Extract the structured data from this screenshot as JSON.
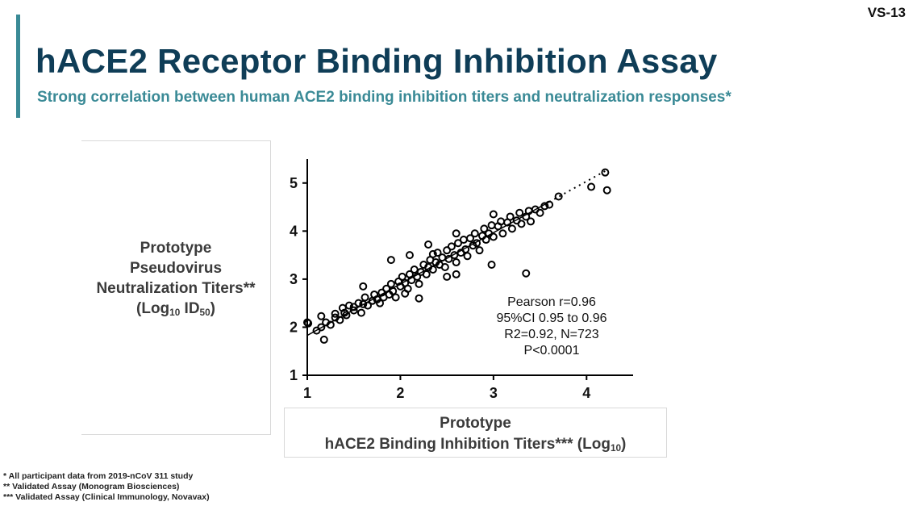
{
  "header": {
    "slide_id": "VS-13",
    "title": "hACE2 Receptor Binding Inhibition Assay",
    "subtitle": "Strong correlation between human ACE2 binding inhibition titers and neutralization responses*"
  },
  "y_axis_title": {
    "line1": "Prototype",
    "line2": "Pseudovirus",
    "line3": "Neutralization Titers**",
    "line4_prefix": "(Log",
    "line4_log_sub": "10",
    "line4_mid": " ID",
    "line4_id_sub": "50",
    "line4_suffix": ")"
  },
  "x_axis_title": {
    "line1": "Prototype",
    "line2_prefix": "hACE2 Binding Inhibition Titers*** (Log",
    "line2_sub": "10",
    "line2_suffix": ")"
  },
  "stats": {
    "pearson": "Pearson r=0.96",
    "ci": "95%CI 0.95  to 0.96",
    "r2": "R2=0.92, N=723",
    "p": "P<0.0001"
  },
  "footnotes": [
    "*  All participant data from 2019-nCoV 311 study",
    "**  Validated Assay (Monogram Biosciences)",
    "*** Validated Assay (Clinical Immunology, Novavax)"
  ],
  "colors": {
    "title": "#0f3d57",
    "accent": "#3a8a96",
    "marker": "#000000"
  },
  "chart_data": {
    "type": "scatter",
    "xlim": [
      1,
      4.5
    ],
    "ylim": [
      1,
      5.5
    ],
    "x_ticks": [
      1,
      2,
      3,
      4
    ],
    "y_ticks": [
      1,
      2,
      3,
      4,
      5
    ],
    "marker": "open-circle",
    "fit_line": {
      "x": [
        1.0,
        4.22
      ],
      "y": [
        1.83,
        5.27
      ],
      "style": "solid then dotted"
    },
    "points": [
      [
        1.0,
        2.1
      ],
      [
        1.01,
        2.08
      ],
      [
        1.1,
        1.93
      ],
      [
        1.15,
        2.0
      ],
      [
        1.18,
        1.74
      ],
      [
        1.15,
        2.23
      ],
      [
        1.2,
        2.1
      ],
      [
        1.25,
        2.05
      ],
      [
        1.3,
        2.2
      ],
      [
        1.3,
        2.28
      ],
      [
        1.35,
        2.15
      ],
      [
        1.38,
        2.4
      ],
      [
        1.4,
        2.3
      ],
      [
        1.42,
        2.25
      ],
      [
        1.45,
        2.45
      ],
      [
        1.5,
        2.35
      ],
      [
        1.5,
        2.42
      ],
      [
        1.55,
        2.5
      ],
      [
        1.58,
        2.3
      ],
      [
        1.6,
        2.48
      ],
      [
        1.62,
        2.62
      ],
      [
        1.65,
        2.45
      ],
      [
        1.7,
        2.55
      ],
      [
        1.72,
        2.68
      ],
      [
        1.75,
        2.58
      ],
      [
        1.78,
        2.5
      ],
      [
        1.8,
        2.72
      ],
      [
        1.82,
        2.62
      ],
      [
        1.85,
        2.8
      ],
      [
        1.88,
        2.68
      ],
      [
        1.9,
        2.9
      ],
      [
        1.92,
        2.75
      ],
      [
        1.95,
        2.62
      ],
      [
        1.98,
        2.95
      ],
      [
        2.0,
        2.85
      ],
      [
        2.02,
        3.05
      ],
      [
        2.05,
        2.92
      ],
      [
        2.08,
        2.8
      ],
      [
        2.1,
        3.1
      ],
      [
        2.12,
        2.98
      ],
      [
        2.15,
        3.2
      ],
      [
        2.18,
        3.05
      ],
      [
        2.2,
        2.9
      ],
      [
        2.22,
        3.15
      ],
      [
        2.25,
        3.3
      ],
      [
        2.28,
        3.1
      ],
      [
        2.3,
        3.25
      ],
      [
        2.32,
        3.4
      ],
      [
        2.35,
        3.2
      ],
      [
        2.38,
        3.35
      ],
      [
        2.4,
        3.55
      ],
      [
        2.42,
        3.3
      ],
      [
        2.45,
        3.45
      ],
      [
        2.48,
        3.25
      ],
      [
        2.5,
        3.6
      ],
      [
        2.52,
        3.42
      ],
      [
        2.55,
        3.68
      ],
      [
        2.58,
        3.5
      ],
      [
        2.6,
        3.35
      ],
      [
        2.62,
        3.75
      ],
      [
        2.65,
        3.55
      ],
      [
        2.68,
        3.82
      ],
      [
        2.7,
        3.62
      ],
      [
        2.72,
        3.48
      ],
      [
        2.75,
        3.85
      ],
      [
        2.78,
        3.7
      ],
      [
        2.8,
        3.95
      ],
      [
        2.82,
        3.75
      ],
      [
        2.85,
        3.6
      ],
      [
        2.88,
        3.9
      ],
      [
        2.9,
        4.05
      ],
      [
        2.92,
        3.82
      ],
      [
        2.95,
        3.95
      ],
      [
        2.98,
        4.12
      ],
      [
        3.0,
        3.88
      ],
      [
        3.05,
        4.1
      ],
      [
        3.08,
        4.2
      ],
      [
        3.1,
        3.95
      ],
      [
        3.15,
        4.18
      ],
      [
        3.18,
        4.3
      ],
      [
        3.2,
        4.05
      ],
      [
        3.25,
        4.22
      ],
      [
        3.28,
        4.38
      ],
      [
        3.3,
        4.15
      ],
      [
        3.35,
        4.3
      ],
      [
        3.38,
        4.42
      ],
      [
        3.4,
        4.2
      ],
      [
        3.45,
        4.45
      ],
      [
        3.5,
        4.38
      ],
      [
        3.55,
        4.52
      ],
      [
        3.6,
        4.55
      ],
      [
        3.7,
        4.72
      ],
      [
        4.05,
        4.92
      ],
      [
        4.2,
        5.22
      ],
      [
        4.22,
        4.85
      ],
      [
        1.6,
        2.85
      ],
      [
        1.9,
        3.4
      ],
      [
        2.1,
        3.5
      ],
      [
        2.3,
        3.72
      ],
      [
        2.6,
        3.95
      ],
      [
        2.98,
        3.3
      ],
      [
        3.35,
        3.12
      ],
      [
        2.6,
        3.1
      ],
      [
        2.2,
        2.6
      ],
      [
        3.0,
        4.35
      ],
      [
        2.5,
        3.05
      ],
      [
        2.05,
        2.7
      ],
      [
        2.35,
        3.52
      ]
    ]
  }
}
